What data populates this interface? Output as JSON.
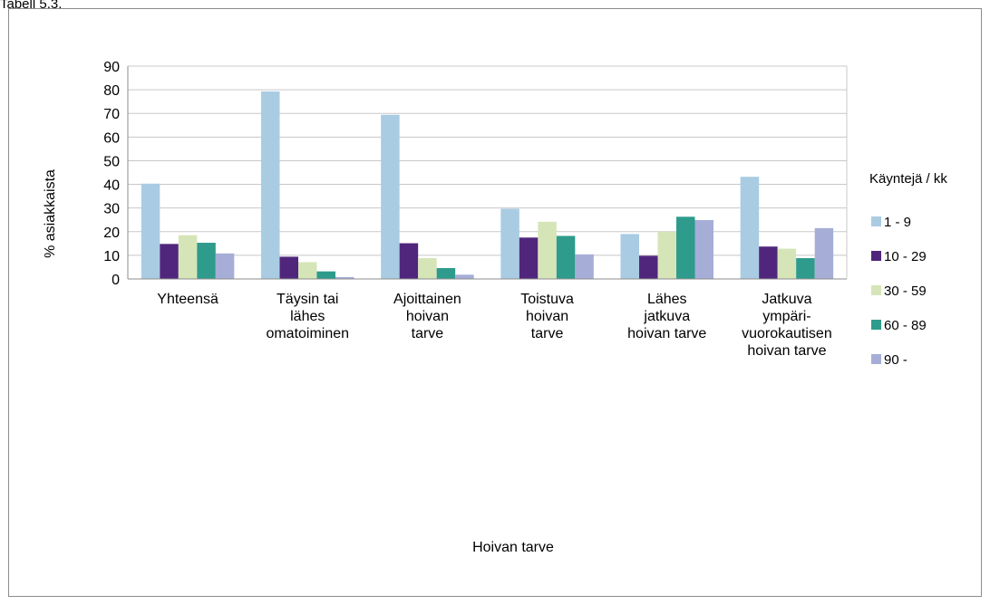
{
  "top_fragment": "Tabell 5.3.",
  "chart_data": {
    "type": "bar",
    "xlabel": "Hoivan tarve",
    "ylabel": "% asiakkaista",
    "ylim": [
      0,
      90
    ],
    "yticks": [
      0,
      10,
      20,
      30,
      40,
      50,
      60,
      70,
      80,
      90
    ],
    "grid": true,
    "legend_title": "Käyntejä / kk",
    "legend_placement": "right",
    "categories": [
      [
        "Yhteensä"
      ],
      [
        "Täysin tai",
        "lähes",
        "omatoiminen"
      ],
      [
        "Ajoittainen",
        "hoivan",
        "tarve"
      ],
      [
        "Toistuva",
        "hoivan",
        "tarve"
      ],
      [
        "Lähes",
        "jatkuva",
        "hoivan tarve"
      ],
      [
        "Jatkuva",
        "ympäri-",
        "vuorokautisen",
        "hoivan tarve"
      ]
    ],
    "series": [
      {
        "name": "1 - 9",
        "color": "#a9cce3",
        "values": [
          40.3,
          79.3,
          69.4,
          29.7,
          19.0,
          43.2
        ]
      },
      {
        "name": "10 - 29",
        "color": "#50267c",
        "values": [
          14.8,
          9.4,
          15.1,
          17.5,
          9.8,
          13.7
        ]
      },
      {
        "name": "30 - 59",
        "color": "#d6e5b7",
        "values": [
          18.5,
          7.1,
          8.8,
          24.2,
          20.0,
          12.8
        ]
      },
      {
        "name": "60 - 89",
        "color": "#2e9b8c",
        "values": [
          15.3,
          3.2,
          4.6,
          18.2,
          26.3,
          8.8
        ]
      },
      {
        "name": "90 -",
        "color": "#a6aed8",
        "values": [
          10.8,
          0.8,
          1.8,
          10.4,
          24.9,
          21.5
        ]
      }
    ]
  }
}
